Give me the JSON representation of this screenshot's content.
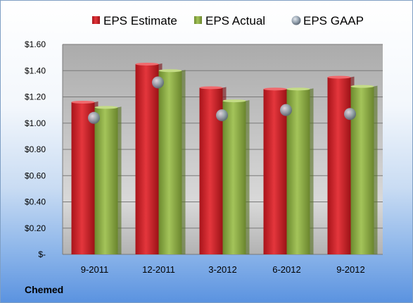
{
  "chart_data": {
    "type": "bar",
    "categories": [
      "9-2011",
      "12-2011",
      "3-2012",
      "6-2012",
      "9-2012"
    ],
    "series": [
      {
        "name": "EPS Estimate",
        "values": [
          1.16,
          1.45,
          1.27,
          1.26,
          1.35
        ],
        "color": "#cc2026"
      },
      {
        "name": "EPS Actual",
        "values": [
          1.12,
          1.4,
          1.17,
          1.26,
          1.28
        ],
        "color": "#8fb046"
      }
    ],
    "markers": {
      "name": "EPS GAAP",
      "values": [
        1.04,
        1.31,
        1.06,
        1.1,
        1.07
      ],
      "color": "#9aa7b4"
    },
    "ylim": [
      0,
      1.6
    ],
    "yticks": [
      0,
      0.2,
      0.4,
      0.6,
      0.8,
      1.0,
      1.2,
      1.4,
      1.6
    ],
    "ytick_labels": [
      "$-",
      "$0.20",
      "$0.40",
      "$0.60",
      "$0.80",
      "$1.00",
      "$1.20",
      "$1.40",
      "$1.60"
    ],
    "grid": true,
    "legend_position": "top"
  },
  "company": "Chemed"
}
